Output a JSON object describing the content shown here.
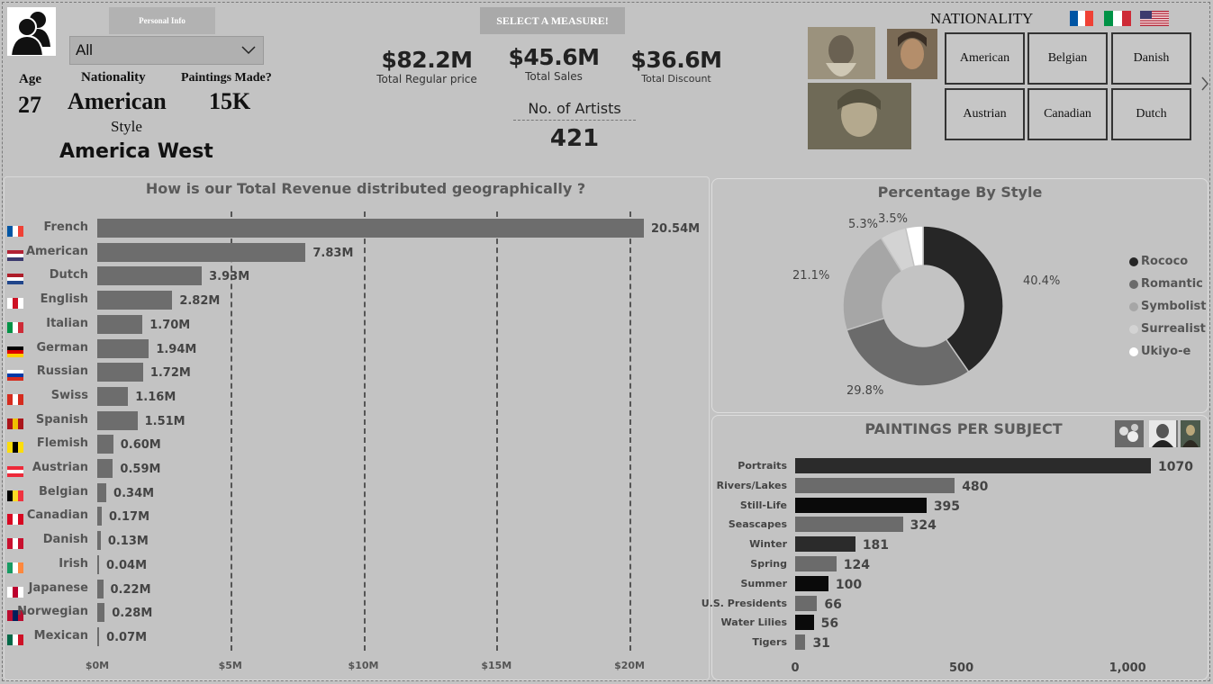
{
  "header": {
    "personal_info_button": "Personal Info",
    "dropdown_value": "All",
    "age_label": "Age",
    "age_value": "27",
    "nationality_label": "Nationality",
    "nationality_value": "American",
    "style_label": "Style",
    "style_value": "America West",
    "paintings_label": "Paintings Made?",
    "paintings_value": "15K",
    "select_measure_button": "SELECT A MEASURE!",
    "kpis": [
      {
        "value": "$82.2M",
        "label": "Total Regular price"
      },
      {
        "value": "$45.6M",
        "label": "Total Sales"
      },
      {
        "value": "$36.6M",
        "label": "Total Discount"
      }
    ],
    "artists_label": "No. of Artists",
    "artists_value": "421",
    "nationality_title": "NATIONALITY",
    "nationality_buttons": [
      "American",
      "Belgian",
      "Danish",
      "Austrian",
      "Canadian",
      "Dutch"
    ],
    "icons": {
      "avatar": "users-icon",
      "dropdown": "chevron-down-icon",
      "next": "chevron-right-icon"
    }
  },
  "chart_data": [
    {
      "type": "bar",
      "title": "How is our Total Revenue distributed geographically ?",
      "orientation": "horizontal",
      "categories": [
        "French",
        "American",
        "Dutch",
        "English",
        "Italian",
        "German",
        "Russian",
        "Swiss",
        "Spanish",
        "Flemish",
        "Austrian",
        "Belgian",
        "Canadian",
        "Danish",
        "Irish",
        "Japanese",
        "Norwegian",
        "Mexican"
      ],
      "values": [
        20.54,
        7.83,
        3.93,
        2.82,
        1.7,
        1.94,
        1.72,
        1.16,
        1.51,
        0.6,
        0.59,
        0.34,
        0.17,
        0.13,
        0.04,
        0.22,
        0.28,
        0.07
      ],
      "labels": [
        "20.54M",
        "7.83M",
        "3.93M",
        "2.82M",
        "1.70M",
        "1.94M",
        "1.72M",
        "1.16M",
        "1.51M",
        "0.60M",
        "0.59M",
        "0.34M",
        "0.17M",
        "0.13M",
        "0.04M",
        "0.22M",
        "0.28M",
        "0.07M"
      ],
      "xticks": [
        "$0M",
        "$5M",
        "$10M",
        "$15M",
        "$20M"
      ],
      "xlim": [
        0,
        20.54
      ],
      "grid": true
    },
    {
      "type": "pie",
      "title": "Percentage By Style",
      "donut": true,
      "categories": [
        "Rococo",
        "Romantic",
        "Symbolist",
        "Surrealist",
        "Ukiyo-e"
      ],
      "values": [
        40.4,
        29.8,
        21.1,
        5.3,
        3.5
      ],
      "labels": [
        "40.4%",
        "29.8%",
        "21.1%",
        "5.3%",
        "3.5%"
      ],
      "colors": [
        "#262626",
        "#6b6b6b",
        "#a6a6a6",
        "#d3d3d3",
        "#ffffff"
      ],
      "legend": "right"
    },
    {
      "type": "bar",
      "title": "PAINTINGS PER SUBJECT",
      "orientation": "horizontal",
      "categories": [
        "Portraits",
        "Rivers/Lakes",
        "Still-Life",
        "Seascapes",
        "Winter",
        "Spring",
        "Summer",
        "U.S. Presidents",
        "Water Lilies",
        "Tigers"
      ],
      "values": [
        1070,
        480,
        395,
        324,
        181,
        124,
        100,
        66,
        56,
        31
      ],
      "colors": [
        "#2b2b2b",
        "#6b6b6b",
        "#0a0a0a",
        "#6b6b6b",
        "#2b2b2b",
        "#6b6b6b",
        "#0a0a0a",
        "#6b6b6b",
        "#0a0a0a",
        "#6b6b6b"
      ],
      "xticks": [
        "0",
        "500",
        "1,000"
      ],
      "xlim": [
        0,
        1070
      ]
    }
  ]
}
